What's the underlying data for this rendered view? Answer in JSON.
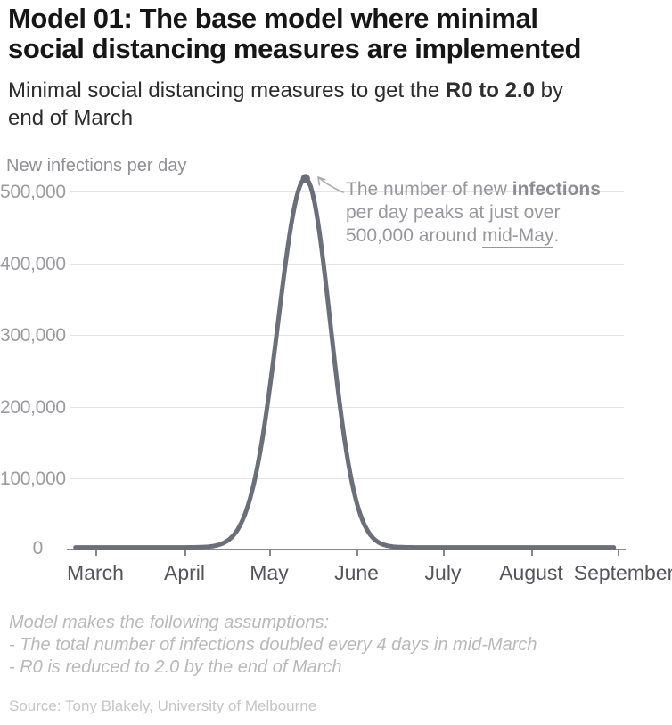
{
  "header": {
    "title_line1": "Model 01: The base model where minimal",
    "title_line2": "social distancing measures are implemented",
    "subtitle_prefix": "Minimal social distancing measures to get the ",
    "subtitle_bold": "R0 to 2.0",
    "subtitle_suffix": " by",
    "subtitle_line2_underlined": "end of March"
  },
  "chart_data": {
    "type": "line",
    "title": "",
    "ylabel": "New infections per day",
    "xlabel": "",
    "x_ticks": [
      "March",
      "April",
      "May",
      "June",
      "July",
      "August",
      "September"
    ],
    "y_ticks": [
      "500,000",
      "400,000",
      "300,000",
      "200,000",
      "100,000",
      "0"
    ],
    "ylim": [
      0,
      520000
    ],
    "grid": "horizontal-only",
    "legend": "none",
    "series": [
      {
        "name": "New infections per day",
        "points": [
          {
            "date": "Mar 1",
            "value": 3000
          },
          {
            "date": "Mar 15",
            "value": 3000
          },
          {
            "date": "Apr 1",
            "value": 4000
          },
          {
            "date": "Apr 15",
            "value": 9000
          },
          {
            "date": "May 1",
            "value": 197000
          },
          {
            "date": "May 7",
            "value": 390000
          },
          {
            "date": "May 14",
            "value": 518000
          },
          {
            "date": "May 21",
            "value": 378000
          },
          {
            "date": "Jun 1",
            "value": 70000
          },
          {
            "date": "Jun 15",
            "value": 5000
          },
          {
            "date": "Jul 1",
            "value": 3000
          },
          {
            "date": "Aug 1",
            "value": 3000
          },
          {
            "date": "Sep 1",
            "value": 3000
          }
        ]
      }
    ],
    "curve": {
      "peak_value": 518000,
      "peak_day_from_mar1": 74,
      "peak_label": "mid-May",
      "sigma_left_days": 9.7,
      "sigma_right_days": 8.8,
      "baseline_value": 3000,
      "start_day_from_mar1": -7,
      "end_day_from_mar1": 184
    }
  },
  "annotation": {
    "line1_prefix": "The number of new ",
    "line1_bold": "infections",
    "line2": "per day peaks at just over",
    "line3_prefix": "500,000 around ",
    "line3_underlined": "mid-May",
    "line3_suffix": "."
  },
  "footnote": {
    "lines": [
      "Model makes the following assumptions:",
      "- The total number of infections doubled every 4 days in mid-March",
      "- R0 is reduced to 2.0 by the end of March"
    ]
  },
  "source": "Source: Tony Blakely, University of Melbourne",
  "colors": {
    "curve": "#6b6f7a",
    "gridline": "#e4e4e6",
    "axis": "#86868c",
    "arrow": "#a9a9af",
    "title_text": "#161616",
    "subtitle_text": "#2d2d2d",
    "x_label_text": "#54545b",
    "y_label_text": "#9b9ba0",
    "annotation_text": "#97979d",
    "footnote_text": "#b9b9bb",
    "source_text": "#c5c5c7"
  }
}
